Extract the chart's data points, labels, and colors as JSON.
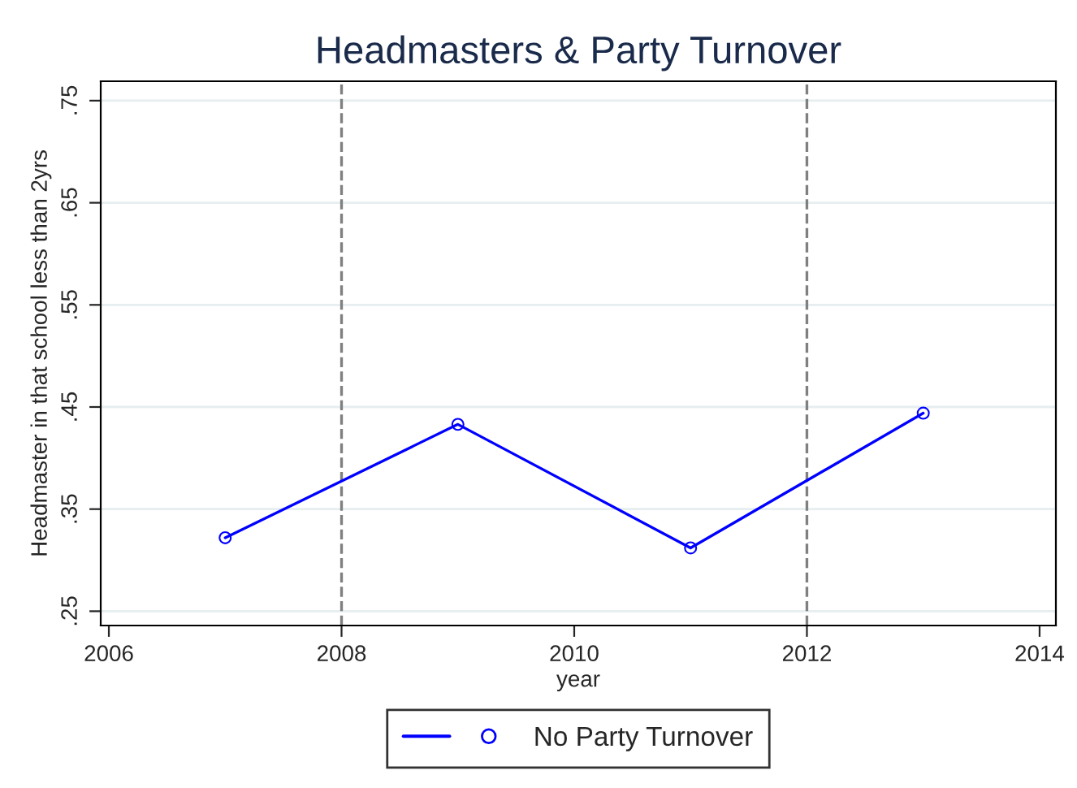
{
  "chart_data": {
    "type": "line",
    "title": "Headmasters & Party Turnover",
    "xlabel": "year",
    "ylabel": "Headmaster in that school less than 2yrs",
    "x": [
      2007,
      2009,
      2011,
      2013
    ],
    "series": [
      {
        "name": "No Party Turnover",
        "color": "#0000ff",
        "values": [
          0.322,
          0.433,
          0.312,
          0.444
        ]
      }
    ],
    "xlim": [
      2005.93,
      2014.14
    ],
    "xticks": [
      2006,
      2008,
      2010,
      2012,
      2014
    ],
    "ylim": [
      0.236,
      0.769
    ],
    "yticks": [
      {
        "value": 0.25,
        "label": ".25"
      },
      {
        "value": 0.35,
        "label": ".35"
      },
      {
        "value": 0.45,
        "label": ".45"
      },
      {
        "value": 0.55,
        "label": ".55"
      },
      {
        "value": 0.65,
        "label": ".65"
      },
      {
        "value": 0.75,
        "label": ".75"
      }
    ],
    "ref_lines": [
      {
        "axis": "x",
        "value": 2008,
        "color": "#808080",
        "line_style": "dashed"
      },
      {
        "axis": "x",
        "value": 2012,
        "color": "#808080",
        "line_style": "dashed"
      }
    ],
    "grid": "y",
    "legend": "bottom",
    "marker": "circle",
    "line_style": "solid"
  }
}
